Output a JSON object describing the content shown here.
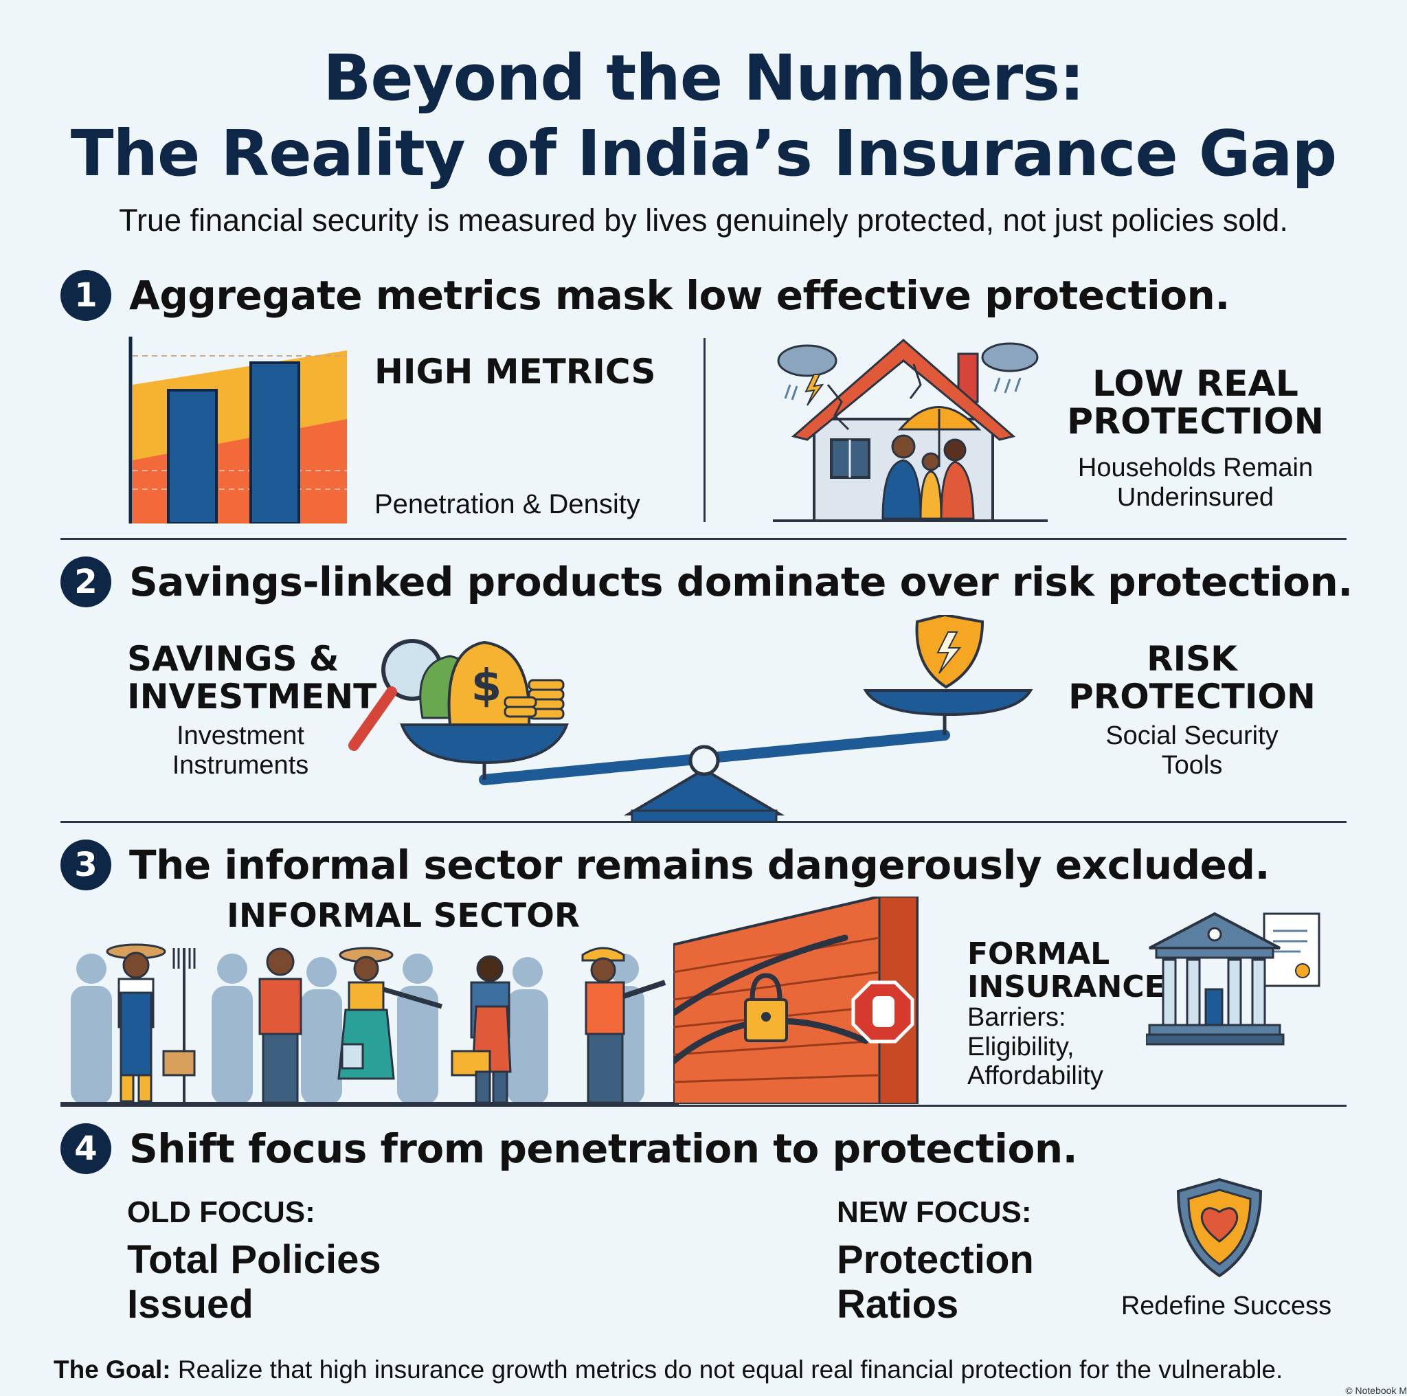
{
  "header": {
    "title_line1": "Beyond the Numbers:",
    "title_line2": "The Reality of India’s Insurance Gap",
    "subtitle": "True financial security is measured by lives genuinely protected, not just policies sold."
  },
  "sections": [
    {
      "number": "1",
      "title": "Aggregate metrics mask low effective protection.",
      "left_heading": "HIGH METRICS",
      "left_caption": "Penetration & Density",
      "right_heading_line1": "LOW REAL",
      "right_heading_line2": "PROTECTION",
      "right_caption_line1": "Households Remain",
      "right_caption_line2": "Underinsured"
    },
    {
      "number": "2",
      "title": "Savings-linked products dominate over risk protection.",
      "left_heading_line1": "SAVINGS &",
      "left_heading_line2": "INVESTMENT",
      "left_caption_line1": "Investment",
      "left_caption_line2": "Instruments",
      "right_heading_line1": "RISK",
      "right_heading_line2": "PROTECTION",
      "right_caption_line1": "Social Security",
      "right_caption_line2": "Tools",
      "dollar_symbol": "$"
    },
    {
      "number": "3",
      "title": "The informal sector remains dangerously excluded.",
      "left_heading": "INFORMAL SECTOR",
      "right_heading_line1": "FORMAL",
      "right_heading_line2": "INSURANCE",
      "right_caption_line1": "Barriers:",
      "right_caption_line2": "Eligibility,",
      "right_caption_line3": "Affordability"
    },
    {
      "number": "4",
      "title": "Shift focus from penetration to protection.",
      "old_label": "OLD FOCUS:",
      "old_value_line1": "Total Policies",
      "old_value_line2": "Issued",
      "new_label": "NEW FOCUS:",
      "new_value_line1": "Protection",
      "new_value_line2": "Ratios",
      "badge_caption": "Redefine Success"
    }
  ],
  "footer": {
    "goal_label": "The Goal:",
    "goal_text": " Realize that high insurance growth metrics do not equal real financial protection for the vulnerable.",
    "credit": "© Notebook M"
  },
  "colors": {
    "navy": "#0f2747",
    "blue": "#1e5a96",
    "orange": "#f26a3a",
    "yellow": "#f5b331",
    "brick": "#e8683a",
    "red_stop": "#d63a2e"
  }
}
